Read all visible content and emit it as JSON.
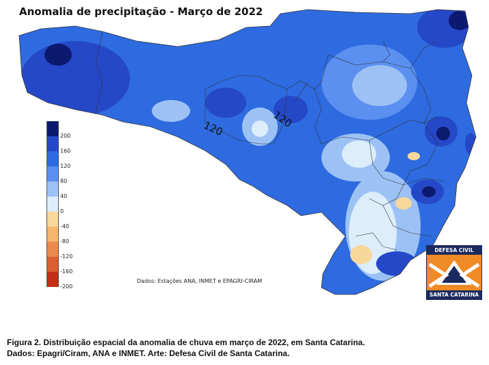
{
  "title": "Anomalia de precipitação - Março de 2022",
  "legend": {
    "labels": [
      "200",
      "160",
      "120",
      "80",
      "40",
      "0",
      "-40",
      "-80",
      "-120",
      "-160",
      "-200"
    ],
    "colors": [
      "#0b1a6e",
      "#2548c8",
      "#2e6be0",
      "#5b8ff0",
      "#9cc2f5",
      "#dceefb",
      "#f7d79a",
      "#f4b56d",
      "#ea8a4c",
      "#d95e32",
      "#c22f14"
    ]
  },
  "contour_labels": [
    "120",
    "120"
  ],
  "credit": "Dados: Estações ANA, INMET e EPAGRI-CIRAM",
  "logo": {
    "top_text": "DEFESA CIVIL",
    "bottom_text": "SANTA CATARINA",
    "colors": {
      "navy": "#1b2a5e",
      "orange": "#f08a24"
    }
  },
  "caption": {
    "line1": "Figura 2. Distribuição espacial da anomalia de chuva em março de 2022,  em Santa Catarina.",
    "line2": "Dados:  Epagri/Ciram, ANA e INMET. Arte: Defesa Civil de Santa Catarina."
  }
}
